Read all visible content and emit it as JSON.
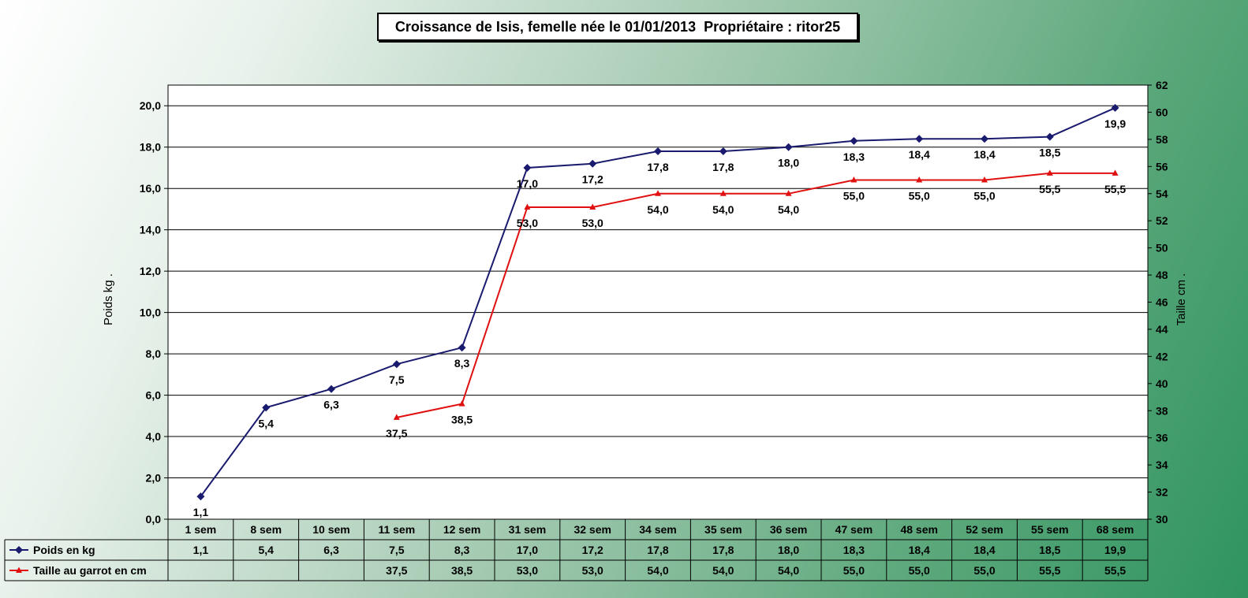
{
  "chart_data": {
    "type": "line",
    "title": "Croissance de Isis, femelle née le 01/01/2013  Propriétaire : ritor25",
    "categories": [
      "1 sem",
      "8 sem",
      "10 sem",
      "11 sem",
      "12 sem",
      "31 sem",
      "32 sem",
      "34 sem",
      "35 sem",
      "36 sem",
      "47 sem",
      "48 sem",
      "52 sem",
      "55 sem",
      "68 sem"
    ],
    "ylabel": "Poids kg   .",
    "y2label": "Taille cm   .",
    "ylim": [
      0,
      21
    ],
    "y2lim": [
      30,
      62
    ],
    "yticks": [
      "0,0",
      "2,0",
      "4,0",
      "6,0",
      "8,0",
      "10,0",
      "12,0",
      "14,0",
      "16,0",
      "18,0",
      "20,0"
    ],
    "y2ticks": [
      "30",
      "32",
      "34",
      "36",
      "38",
      "40",
      "42",
      "44",
      "46",
      "48",
      "50",
      "52",
      "54",
      "56",
      "58",
      "60",
      "62"
    ],
    "grid": true,
    "legend": "data-table",
    "series": [
      {
        "name": "Poids en kg",
        "axis": "left",
        "color": "#1a1a6e",
        "marker": "diamond",
        "values": [
          1.1,
          5.4,
          6.3,
          7.5,
          8.3,
          17.0,
          17.2,
          17.8,
          17.8,
          18.0,
          18.3,
          18.4,
          18.4,
          18.5,
          19.9
        ],
        "labels": [
          "1,1",
          "5,4",
          "6,3",
          "7,5",
          "8,3",
          "17,0",
          "17,2",
          "17,8",
          "17,8",
          "18,0",
          "18,3",
          "18,4",
          "18,4",
          "18,5",
          "19,9"
        ]
      },
      {
        "name": "Taille au garrot en cm",
        "axis": "right",
        "color": "#e01010",
        "marker": "triangle",
        "values": [
          null,
          null,
          null,
          37.5,
          38.5,
          53.0,
          53.0,
          54.0,
          54.0,
          54.0,
          55.0,
          55.0,
          55.0,
          55.5,
          55.5
        ],
        "labels": [
          "",
          "",
          "",
          "37,5",
          "38,5",
          "53,0",
          "53,0",
          "54,0",
          "54,0",
          "54,0",
          "55,0",
          "55,0",
          "55,0",
          "55,5",
          "55,5"
        ]
      }
    ]
  }
}
